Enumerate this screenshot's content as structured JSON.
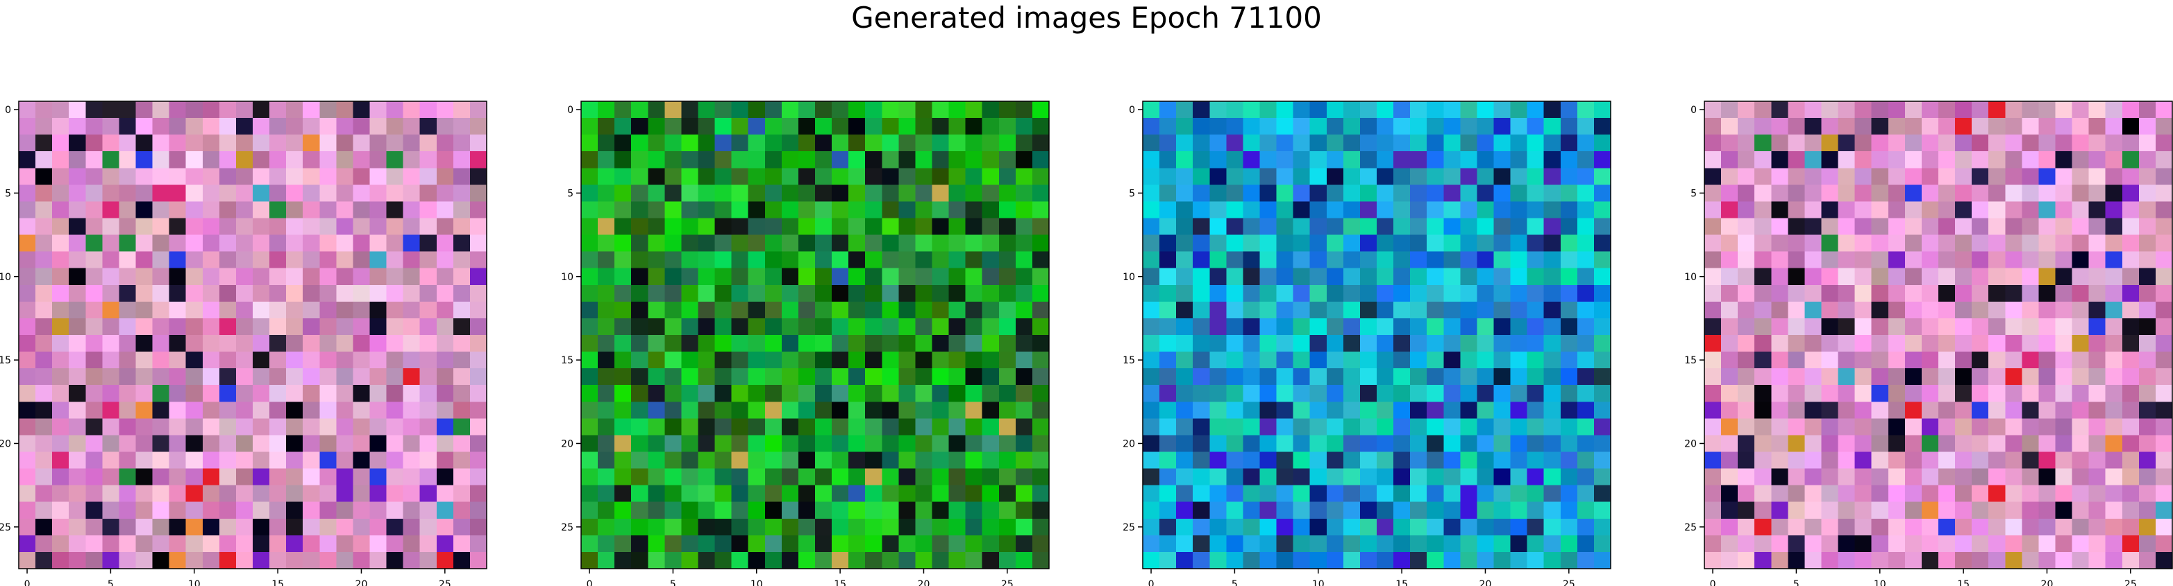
{
  "figure": {
    "title": "Generated images Epoch 71100"
  },
  "colors": {
    "axis": "#000000",
    "tick_label": "#000000",
    "background": "#ffffff"
  },
  "chart_data": [
    {
      "type": "heatmap",
      "grid_size": [
        28,
        28
      ],
      "palette": "pastel-pink-purple",
      "xticks": [
        "0",
        "5",
        "10",
        "15",
        "20",
        "25"
      ],
      "yticks": [
        "0",
        "5",
        "10",
        "15",
        "20",
        "25"
      ],
      "xlim": [
        -0.5,
        27.5
      ],
      "ylim": [
        27.5,
        -0.5
      ]
    },
    {
      "type": "heatmap",
      "grid_size": [
        28,
        28
      ],
      "palette": "green",
      "xticks": [
        "0",
        "5",
        "10",
        "15",
        "20",
        "25"
      ],
      "yticks": [
        "0",
        "5",
        "10",
        "15",
        "20",
        "25"
      ],
      "xlim": [
        -0.5,
        27.5
      ],
      "ylim": [
        27.5,
        -0.5
      ]
    },
    {
      "type": "heatmap",
      "grid_size": [
        28,
        28
      ],
      "palette": "cyan-blue",
      "xticks": [
        "0",
        "5",
        "10",
        "15",
        "20",
        "25"
      ],
      "yticks": [
        "0",
        "5",
        "10",
        "15",
        "20",
        "25"
      ],
      "xlim": [
        -0.5,
        27.5
      ],
      "ylim": [
        27.5,
        -0.5
      ]
    },
    {
      "type": "heatmap",
      "grid_size": [
        28,
        28
      ],
      "palette": "pastel-pink-purple",
      "xticks": [
        "0",
        "5",
        "10",
        "15",
        "20",
        "25"
      ],
      "yticks": [
        "0",
        "5",
        "10",
        "15",
        "20",
        "25"
      ],
      "xlim": [
        -0.5,
        27.5
      ],
      "ylim": [
        27.5,
        -0.5
      ]
    }
  ]
}
